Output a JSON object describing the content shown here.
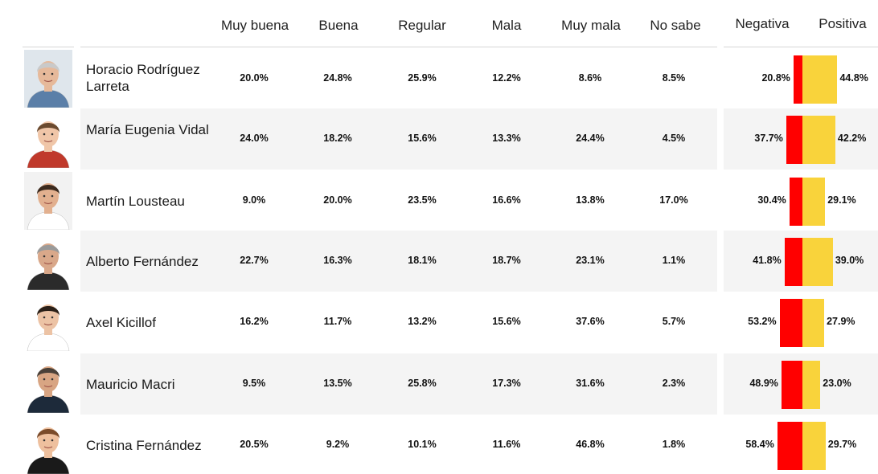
{
  "columns": {
    "muy_buena": "Muy buena",
    "buena": "Buena",
    "regular": "Regular",
    "mala": "Mala",
    "muy_mala": "Muy mala",
    "no_sabe": "No sabe",
    "negativa": "Negativa",
    "positiva": "Positiva"
  },
  "colors": {
    "negativa": "#ff0000",
    "positiva": "#f9d33b",
    "row_shade": "#f4f4f4"
  },
  "chart_data": {
    "type": "table",
    "columns": [
      "Muy buena",
      "Buena",
      "Regular",
      "Mala",
      "Muy mala",
      "No sabe",
      "Negativa",
      "Positiva"
    ],
    "rows": [
      {
        "name": "Horacio Rodríguez Larreta",
        "muy_buena": "20.0%",
        "buena": "24.8%",
        "regular": "25.9%",
        "mala": "12.2%",
        "muy_mala": "8.6%",
        "no_sabe": "8.5%",
        "negativa": "20.8%",
        "positiva": "44.8%",
        "neg": 20.8,
        "pos": 44.8
      },
      {
        "name": "María Eugenia Vidal",
        "muy_buena": "24.0%",
        "buena": "18.2%",
        "regular": "15.6%",
        "mala": "13.3%",
        "muy_mala": "24.4%",
        "no_sabe": "4.5%",
        "negativa": "37.7%",
        "positiva": "42.2%",
        "neg": 37.7,
        "pos": 42.2
      },
      {
        "name": "Martín Lousteau",
        "muy_buena": "9.0%",
        "buena": "20.0%",
        "regular": "23.5%",
        "mala": "16.6%",
        "muy_mala": "13.8%",
        "no_sabe": "17.0%",
        "negativa": "30.4%",
        "positiva": "29.1%",
        "neg": 30.4,
        "pos": 29.1
      },
      {
        "name": "Alberto Fernández",
        "muy_buena": "22.7%",
        "buena": "16.3%",
        "regular": "18.1%",
        "mala": "18.7%",
        "muy_mala": "23.1%",
        "no_sabe": "1.1%",
        "negativa": "41.8%",
        "positiva": "39.0%",
        "neg": 41.8,
        "pos": 39.0
      },
      {
        "name": "Axel Kicillof",
        "muy_buena": "16.2%",
        "buena": "11.7%",
        "regular": "13.2%",
        "mala": "15.6%",
        "muy_mala": "37.6%",
        "no_sabe": "5.7%",
        "negativa": "53.2%",
        "positiva": "27.9%",
        "neg": 53.2,
        "pos": 27.9
      },
      {
        "name": "Mauricio Macri",
        "muy_buena": "9.5%",
        "buena": "13.5%",
        "regular": "25.8%",
        "mala": "17.3%",
        "muy_mala": "31.6%",
        "no_sabe": "2.3%",
        "negativa": "48.9%",
        "positiva": "23.0%",
        "neg": 48.9,
        "pos": 23.0
      },
      {
        "name": "Cristina Fernández",
        "muy_buena": "20.5%",
        "buena": "9.2%",
        "regular": "10.1%",
        "mala": "11.6%",
        "muy_mala": "46.8%",
        "no_sabe": "1.8%",
        "negativa": "58.4%",
        "positiva": "29.7%",
        "neg": 58.4,
        "pos": 29.7
      }
    ]
  }
}
